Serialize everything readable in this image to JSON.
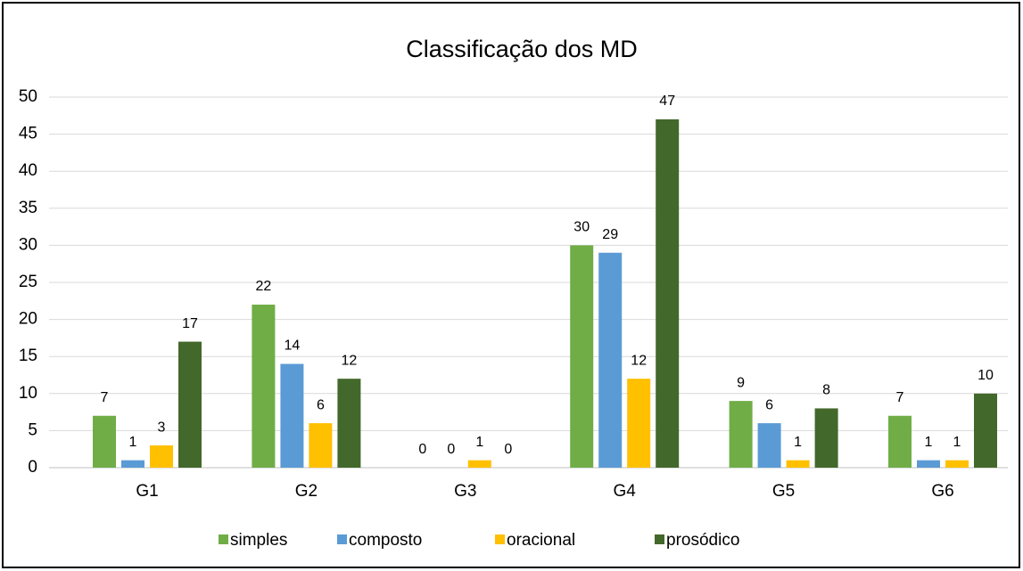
{
  "chart_data": {
    "type": "bar",
    "title": "Classificação dos MD",
    "categories": [
      "G1",
      "G2",
      "G3",
      "G4",
      "G5",
      "G6"
    ],
    "series": [
      {
        "name": "simples",
        "color": "#70ad47",
        "values": [
          7,
          22,
          0,
          30,
          9,
          7
        ]
      },
      {
        "name": "composto",
        "color": "#5b9bd5",
        "values": [
          1,
          14,
          0,
          29,
          6,
          1
        ]
      },
      {
        "name": "oracional",
        "color": "#ffc000",
        "values": [
          3,
          6,
          1,
          12,
          1,
          1
        ]
      },
      {
        "name": "prosódico",
        "color": "#43682b",
        "values": [
          17,
          12,
          0,
          47,
          8,
          10
        ]
      }
    ],
    "ylim": [
      0,
      50
    ],
    "yticks": [
      0,
      5,
      10,
      15,
      20,
      25,
      30,
      35,
      40,
      45,
      50
    ],
    "grid": true,
    "legend": "bottom"
  }
}
